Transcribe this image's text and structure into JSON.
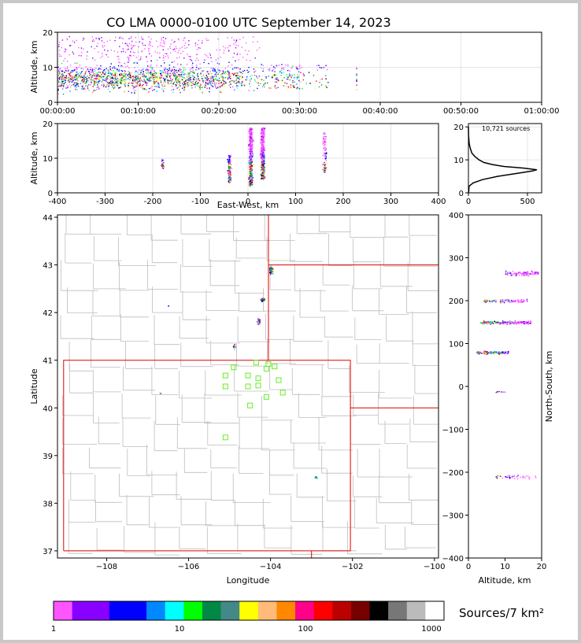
{
  "title": "CO LMA 0000-0100 UTC September 14, 2023",
  "time_panel": {
    "ylabel": "Altitude, km",
    "y_ticks": [
      "0",
      "10",
      "20"
    ],
    "x_ticks": [
      "00:00:00",
      "00:10:00",
      "00:20:00",
      "00:30:00",
      "00:40:00",
      "00:50:00",
      "01:00:00"
    ]
  },
  "ew_panel": {
    "ylabel": "Altitude, km",
    "xlabel": "East-West, km",
    "y_ticks": [
      "0",
      "10",
      "20"
    ],
    "x_ticks": [
      "-400",
      "-300",
      "-200",
      "-100",
      "0",
      "100",
      "200",
      "300",
      "400"
    ]
  },
  "hist_panel": {
    "annotation": "10,721 sources",
    "y_ticks": [
      "0",
      "10",
      "20"
    ],
    "x_ticks": [
      "0",
      "500"
    ]
  },
  "map_panel": {
    "ylabel": "Latitude",
    "xlabel": "Longitude",
    "y_ticks": [
      "37",
      "38",
      "39",
      "40",
      "41",
      "42",
      "43",
      "44"
    ],
    "x_ticks": [
      "−108",
      "−106",
      "−104",
      "−102",
      "−100"
    ]
  },
  "ns_panel": {
    "ylabel": "North-South, km",
    "xlabel": "Altitude, km",
    "y_ticks": [
      "−400",
      "−300",
      "−200",
      "−100",
      "0",
      "100",
      "200",
      "300",
      "400"
    ],
    "x_ticks": [
      "0",
      "10",
      "20"
    ]
  },
  "colorbar": {
    "label": "Sources/7 km²",
    "ticks": [
      "1",
      "10",
      "100",
      "1000"
    ],
    "colors": [
      "#ff55ff",
      "#8800ff",
      "#8800ff",
      "#0000ff",
      "#0000ff",
      "#0088ff",
      "#00ffff",
      "#00ff00",
      "#008844",
      "#448888",
      "#ffff00",
      "#ffbb77",
      "#ff8800",
      "#ff0088",
      "#ff0000",
      "#bb0000",
      "#770000",
      "#000000",
      "#777777",
      "#bbbbbb",
      "#ffffff"
    ]
  },
  "chart_data": [
    {
      "type": "scatter",
      "name": "altitude-vs-time",
      "title": "CO LMA 0000-0100 UTC September 14, 2023",
      "xlabel": "",
      "ylabel": "Altitude, km",
      "xlim_minutes": [
        0,
        60
      ],
      "ylim": [
        0,
        20
      ],
      "activity_minutes": [
        0,
        33.5
      ],
      "late_source_minute": 37
    },
    {
      "type": "scatter",
      "name": "altitude-vs-east-west",
      "xlabel": "East-West, km",
      "ylabel": "Altitude, km",
      "xlim": [
        -400,
        400
      ],
      "ylim": [
        0,
        20
      ],
      "clusters_km": [
        -180,
        -40,
        5,
        30,
        160
      ]
    },
    {
      "type": "line",
      "name": "altitude-histogram",
      "xlim": [
        0,
        620
      ],
      "ylim": [
        0,
        21
      ],
      "peak_count": 580,
      "peak_altitude_km": 7,
      "total_sources": 10721
    },
    {
      "type": "scatter",
      "name": "plan-view-map",
      "xlabel": "Longitude",
      "ylabel": "Latitude",
      "xlim": [
        -109.2,
        -99.9
      ],
      "ylim": [
        36.85,
        44.05
      ],
      "stations": [
        [
          -104.35,
          40.95
        ],
        [
          -104.05,
          40.92
        ],
        [
          -103.9,
          40.87
        ],
        [
          -104.1,
          40.82
        ],
        [
          -104.9,
          40.85
        ],
        [
          -105.1,
          40.68
        ],
        [
          -104.55,
          40.68
        ],
        [
          -104.3,
          40.62
        ],
        [
          -103.8,
          40.58
        ],
        [
          -104.55,
          40.45
        ],
        [
          -104.3,
          40.47
        ],
        [
          -105.1,
          40.45
        ],
        [
          -103.7,
          40.32
        ],
        [
          -104.1,
          40.23
        ],
        [
          -104.5,
          40.05
        ],
        [
          -105.1,
          39.38
        ]
      ]
    },
    {
      "type": "scatter",
      "name": "north-south-vs-altitude",
      "xlabel": "Altitude, km",
      "ylabel": "North-South, km",
      "xlim": [
        0,
        20
      ],
      "ylim": [
        -400,
        400
      ],
      "clusters_km": [
        265,
        200,
        150,
        80,
        -12,
        -210
      ]
    }
  ]
}
